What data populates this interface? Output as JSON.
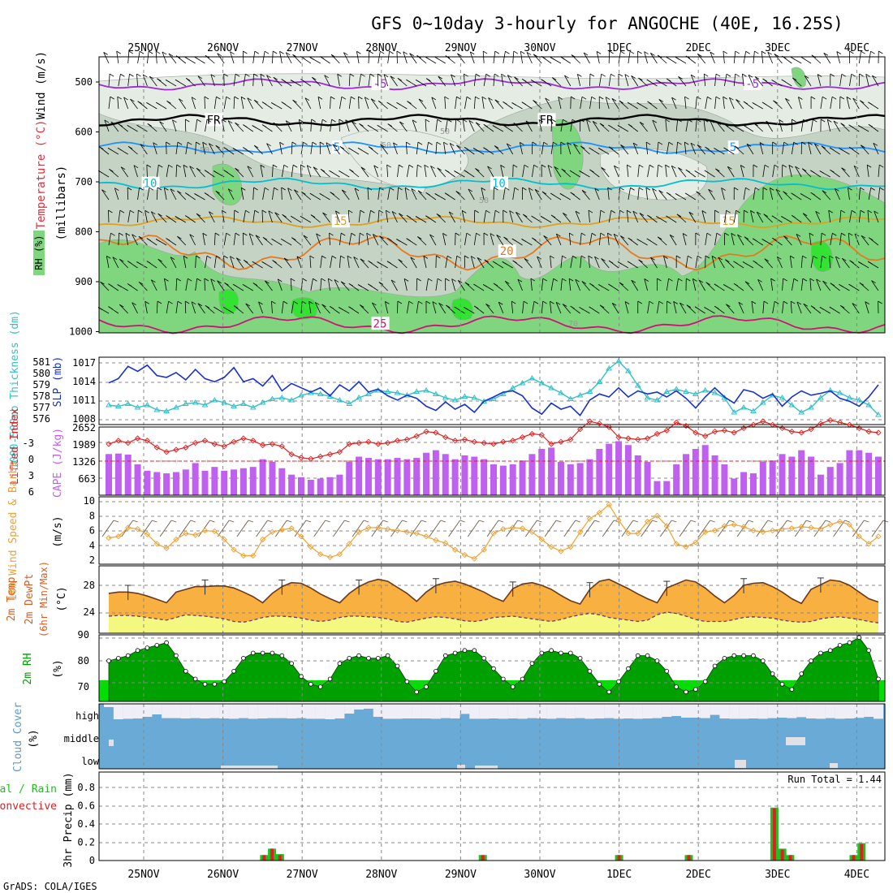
{
  "title": "GFS 0~10day 3-hourly for ANGOCHE (40E, 16.25S)",
  "credit": "GrADS: COLA/IGES",
  "colors": {
    "grid": "#888888",
    "rh_light": "#e4ece4",
    "rh_mid": "#c4d3c4",
    "rh_green": "#7fd67f",
    "rh_bright": "#33e233",
    "purple": "#9c2bd6",
    "blue": "#1e90ff",
    "cyan": "#00c0d0",
    "orange": "#e0a020",
    "dark_orange": "#e87820",
    "magenta": "#d0107a",
    "slp_line": "#1830d0",
    "thick_line": "#30c0c8",
    "cape_bar": "#c060f0",
    "li_line": "#e02020",
    "wind_line": "#f0a030",
    "temp_fill": "#f8b040",
    "temp_max_fill": "#f07018",
    "dew_fill": "#f4f880",
    "rh_area": "#00a000",
    "rh_base": "#00e000",
    "cloud": "#6aaad6",
    "cloud_clear": "#f0eef6",
    "precip_total": "#20c020",
    "precip_conv": "#e02020"
  },
  "chart_data": {
    "type": "meteogram",
    "dates": [
      "25NOV",
      "26NOV",
      "27NOV",
      "28NOV",
      "29NOV",
      "30NOV",
      "1DEC",
      "2DEC",
      "3DEC",
      "4DEC"
    ],
    "panels": [
      {
        "id": "upper_air",
        "type": "heatmap",
        "ylabel_parts": [
          "Wind (m/s)",
          "Temperature (°C)",
          "RH (%)"
        ],
        "yunits": "(millibars)",
        "yticks": [
          "500",
          "600",
          "700",
          "800",
          "900",
          "1000"
        ],
        "ylim": [
          450,
          1000
        ],
        "rh_contour_labels": [
          "50",
          "50",
          "50",
          "50",
          "70"
        ],
        "temp_contours": [
          {
            "label": "-5",
            "level": 505,
            "color": "purple",
            "labels_at": [
              3.1,
              7.8
            ]
          },
          {
            "label": "FR",
            "level": 577,
            "color": "black",
            "labels_at": [
              1.0,
              5.2
            ]
          },
          {
            "label": "5",
            "level": 632,
            "color": "blue",
            "labels_at": [
              2.6,
              7.6
            ]
          },
          {
            "label": "10",
            "level": 704,
            "color": "cyan",
            "labels_at": [
              0.2,
              4.6
            ]
          },
          {
            "label": "15",
            "level": 780,
            "color": "orange",
            "labels_at": [
              2.6,
              7.5
            ]
          },
          {
            "label": "20",
            "level": 840,
            "color": "dark_orange",
            "labels_at": [
              4.7
            ]
          },
          {
            "label": "25",
            "level": 985,
            "color": "magenta",
            "labels_at": [
              3.1
            ]
          }
        ]
      },
      {
        "id": "slp_thickness",
        "type": "line",
        "ylabel_left": "1000-500mb Thickness (dm)",
        "ylabel_right": "SLP (mb)",
        "yticks_left": [
          "581",
          "580",
          "579",
          "578",
          "577",
          "576"
        ],
        "yticks_right": [
          "1017",
          "1014",
          "1011",
          "1008"
        ],
        "slp_ylim": [
          1006.5,
          1017.5
        ],
        "slp": [
          1013.3,
          1014.0,
          1016.0,
          1015.2,
          1016.2,
          1014.5,
          1014.2,
          1015.0,
          1013.8,
          1015.5,
          1014.0,
          1013.5,
          1014.2,
          1015.8,
          1013.5,
          1014.0,
          1012.8,
          1014.5,
          1012.0,
          1013.2,
          1012.5,
          1011.8,
          1012.5,
          1011.2,
          1013.0,
          1012.0,
          1013.5,
          1011.8,
          1012.3,
          1011.2,
          1010.5,
          1011.3,
          1010.8,
          1009.5,
          1008.8,
          1010.2,
          1009.0,
          1009.8,
          1008.5,
          1010.3,
          1011.0,
          1011.8,
          1012.0,
          1011.2,
          1009.2,
          1008.2,
          1010.0,
          1009.0,
          1009.5,
          1008.0,
          1010.5,
          1011.5,
          1011.0,
          1012.5,
          1011.0,
          1012.0,
          1011.5,
          1011.8,
          1011.0,
          1012.0,
          1010.8,
          1009.2,
          1011.0,
          1012.5,
          1011.0,
          1010.0,
          1012.2,
          1011.8,
          1010.8,
          1011.5,
          1009.5,
          1011.0,
          1012.0,
          1011.3,
          1011.6,
          1012.0,
          1010.8,
          1010.3,
          1009.5,
          1011.0,
          1013.0
        ],
        "thickness": [
          577.4,
          577.3,
          577.5,
          577.2,
          577.4,
          577.0,
          576.9,
          577.2,
          577.5,
          577.6,
          577.4,
          577.8,
          577.6,
          577.3,
          577.5,
          577.2,
          577.6,
          577.9,
          578.0,
          577.8,
          578.2,
          578.4,
          578.3,
          578.1,
          577.8,
          577.5,
          578.0,
          578.3,
          578.6,
          578.5,
          578.4,
          578.2,
          578.5,
          578.6,
          578.3,
          578.0,
          577.8,
          578.1,
          578.0,
          577.7,
          577.9,
          578.3,
          578.8,
          579.2,
          579.6,
          579.2,
          578.8,
          578.4,
          577.9,
          578.2,
          578.5,
          579.3,
          580.4,
          581.0,
          580.2,
          579.0,
          578.0,
          577.8,
          578.5,
          578.7,
          578.5,
          578.3,
          578.6,
          578.4,
          578.0,
          576.8,
          577.2,
          576.9,
          577.6,
          578.2,
          578.0,
          577.4,
          576.8,
          577.2,
          578.0,
          578.6,
          578.4,
          578.0,
          577.8,
          577.4,
          576.6
        ]
      },
      {
        "id": "cape_li",
        "type": "bar",
        "ylabel_left": "Lifted Index",
        "ylabel_right": "CAPE (J/kg)",
        "yticks_left": [
          "-3",
          "0",
          "3",
          "6"
        ],
        "yticks_right": [
          "2652",
          "1989",
          "1326",
          "663"
        ],
        "cape_ylim": [
          0,
          2652
        ],
        "cape": [
          1600,
          1620,
          1580,
          1200,
          950,
          900,
          850,
          900,
          1000,
          1250,
          950,
          1100,
          950,
          1000,
          1050,
          1100,
          1400,
          1300,
          1050,
          800,
          700,
          600,
          650,
          700,
          800,
          1300,
          1500,
          1450,
          1400,
          1400,
          1450,
          1400,
          1450,
          1650,
          1750,
          1600,
          1400,
          1550,
          1500,
          1400,
          1200,
          1150,
          1200,
          1350,
          1600,
          1800,
          1850,
          1300,
          1200,
          1250,
          1400,
          1800,
          2000,
          2100,
          1950,
          1550,
          1300,
          550,
          550,
          1200,
          1600,
          1800,
          1950,
          1550,
          1200,
          650,
          900,
          850,
          1300,
          1350,
          1600,
          1500,
          1750,
          1500,
          800,
          1100,
          1250,
          1750,
          1750,
          1650,
          1500,
          1200,
          1100,
          950
        ],
        "li": [
          -1.5,
          -1.8,
          -1.6,
          -2.0,
          -1.8,
          -1.2,
          -0.8,
          -1.0,
          -1.2,
          -1.6,
          -1.8,
          -1.5,
          -1.3,
          -1.7,
          -2.0,
          -1.8,
          -1.4,
          -1.5,
          -1.3,
          -0.6,
          -0.3,
          -0.2,
          -0.4,
          -0.6,
          -0.8,
          -1.5,
          -1.6,
          -1.7,
          -1.5,
          -1.6,
          -1.8,
          -1.9,
          -2.2,
          -2.6,
          -2.5,
          -2.1,
          -1.8,
          -1.9,
          -1.7,
          -1.6,
          -1.5,
          -1.7,
          -1.8,
          -2.1,
          -2.4,
          -2.3,
          -1.5,
          -1.7,
          -1.9,
          -2.8,
          -3.5,
          -3.3,
          -3.0,
          -2.1,
          -2.0,
          -1.9,
          -2.0,
          -2.4,
          -2.7,
          -3.4,
          -3.1,
          -2.5,
          -2.2,
          -2.6,
          -2.7,
          -2.5,
          -2.9,
          -3.2,
          -3.5,
          -3.2,
          -2.9,
          -2.6,
          -2.5,
          -2.8,
          -3.3,
          -3.6,
          -3.4,
          -3.2,
          -2.9,
          -2.6,
          -2.5,
          -2.4,
          -2.3,
          -2.2
        ]
      },
      {
        "id": "wind10m",
        "type": "line",
        "ylabel": "10m Wind Speed & Barbs",
        "yunits": "(m/s)",
        "yticks": [
          "10",
          "8",
          "6",
          "4",
          "2"
        ],
        "ylim": [
          1.8,
          10.5
        ],
        "speed": [
          5.0,
          5.2,
          6.4,
          6.2,
          5.5,
          4.2,
          3.6,
          4.8,
          5.6,
          5.4,
          6.0,
          5.9,
          4.8,
          3.4,
          2.6,
          2.6,
          4.8,
          5.8,
          6.1,
          6.3,
          5.2,
          3.8,
          2.8,
          2.4,
          2.8,
          4.2,
          5.8,
          6.4,
          6.4,
          6.2,
          6.0,
          5.8,
          5.6,
          5.2,
          4.7,
          4.3,
          3.4,
          2.7,
          2.2,
          3.4,
          5.6,
          6.2,
          6.4,
          6.3,
          5.8,
          4.8,
          3.8,
          3.2,
          3.8,
          5.8,
          7.6,
          8.4,
          9.5,
          7.4,
          5.6,
          5.6,
          7.2,
          8.0,
          6.6,
          4.2,
          3.8,
          4.4,
          5.8,
          6.0,
          6.6,
          6.8,
          6.5,
          6.0,
          5.8,
          6.0,
          6.2,
          6.3,
          6.5,
          6.4,
          6.2,
          6.8,
          7.2,
          6.8,
          5.2,
          4.2,
          5.2
        ]
      },
      {
        "id": "temp2m",
        "type": "area",
        "ylabel": "2m Temp 2m DewPt (6hr Min/Max)",
        "yunits": "(°C)",
        "yticks": [
          "28",
          "24"
        ],
        "ylim": [
          21.8,
          30.2
        ],
        "temp": [
          26.8,
          27.0,
          27.0,
          26.8,
          26.4,
          25.9,
          25.4,
          27.0,
          27.4,
          27.8,
          27.8,
          27.9,
          27.9,
          27.6,
          27.0,
          26.3,
          25.4,
          26.8,
          27.8,
          28.4,
          28.3,
          27.6,
          26.7,
          26.0,
          25.4,
          26.8,
          27.8,
          28.5,
          28.9,
          28.6,
          27.7,
          26.8,
          25.6,
          27.0,
          28.0,
          28.4,
          28.6,
          28.2,
          27.6,
          27.0,
          26.2,
          25.6,
          27.5,
          28.2,
          28.4,
          28.0,
          27.4,
          26.5,
          25.7,
          25.2,
          27.4,
          28.6,
          28.9,
          28.2,
          27.5,
          26.7,
          26.0,
          25.4,
          27.6,
          28.2,
          28.8,
          28.5,
          27.6,
          26.4,
          25.4,
          26.5,
          28.0,
          28.3,
          28.4,
          27.8,
          27.0,
          26.0,
          25.3,
          27.4,
          28.1,
          28.8,
          28.6,
          28.0,
          27.0,
          26.0,
          25.5,
          27.6
        ],
        "dew": [
          23.4,
          23.5,
          23.5,
          23.4,
          23.2,
          23.0,
          22.8,
          23.2,
          23.6,
          23.5,
          23.4,
          23.2,
          23.0,
          22.6,
          22.5,
          22.8,
          23.2,
          23.4,
          23.4,
          23.3,
          23.1,
          22.8,
          22.6,
          22.8,
          23.2,
          23.4,
          23.4,
          23.3,
          23.2,
          23.0,
          22.6,
          22.5,
          22.8,
          23.1,
          23.3,
          23.2,
          23.0,
          22.7,
          22.6,
          22.8,
          23.2,
          23.3,
          23.4,
          23.2,
          23.0,
          22.8,
          22.6,
          22.9,
          23.3,
          23.6,
          23.8,
          23.6,
          23.2,
          23.0,
          22.8,
          22.6,
          22.8,
          23.6,
          24.0,
          23.8,
          23.4,
          22.9,
          22.6,
          22.6,
          22.6,
          22.9,
          23.2,
          23.3,
          23.2,
          23.1,
          22.8,
          22.6,
          22.5,
          22.6,
          23.0,
          23.2,
          23.3,
          23.1,
          22.9,
          22.6,
          22.4
        ],
        "max_overlay": [
          false,
          false,
          false,
          false,
          false,
          false,
          false,
          false,
          false,
          false,
          false,
          false,
          false,
          false,
          false,
          false,
          false,
          false,
          false,
          false,
          false,
          false,
          false,
          false,
          false,
          false,
          false,
          false,
          false,
          false,
          false,
          false,
          false,
          false,
          false,
          false,
          false,
          false,
          false,
          false,
          false,
          false,
          false,
          false,
          false,
          false,
          false,
          false,
          false,
          false,
          false,
          false,
          false,
          false,
          false,
          false,
          false,
          false,
          false,
          false,
          false,
          false,
          false,
          false,
          false,
          false,
          false,
          false,
          false,
          false,
          false,
          false,
          false,
          false,
          false,
          false,
          false,
          false,
          false,
          false,
          false,
          false
        ]
      },
      {
        "id": "rh2m",
        "type": "area",
        "ylabel": "2m RH",
        "yunits": "(%)",
        "yticks": [
          "90",
          "80",
          "70"
        ],
        "ylim": [
          61,
          93
        ],
        "rh": [
          80,
          81,
          82,
          84,
          85,
          86,
          87,
          82,
          76,
          73,
          71,
          71,
          72,
          76,
          81,
          83,
          83,
          83,
          82,
          79,
          74,
          71,
          70,
          73,
          79,
          81,
          82,
          81,
          81,
          82,
          78,
          72,
          68,
          70,
          76,
          82,
          83,
          84,
          84,
          81,
          77,
          73,
          70,
          73,
          79,
          83,
          84,
          83,
          83,
          81,
          76,
          71,
          68,
          72,
          77,
          82,
          82,
          80,
          76,
          70,
          68,
          69,
          72,
          78,
          81,
          82,
          82,
          82,
          80,
          75,
          71,
          69,
          75,
          80,
          83,
          84,
          86,
          87,
          89,
          84,
          73
        ]
      },
      {
        "id": "cloud",
        "type": "bar",
        "ylabel": "Cloud Cover",
        "yunits": "(%)",
        "level_labels": [
          "high",
          "middle",
          "low"
        ],
        "high_clear": [
          20,
          95,
          92,
          90,
          80,
          65,
          88,
          88,
          90,
          88,
          90,
          88,
          90,
          92,
          88,
          92,
          90,
          88,
          88,
          90,
          88,
          92,
          92,
          95,
          90,
          60,
          35,
          30,
          80,
          92,
          92,
          90,
          90,
          90,
          92,
          88,
          90,
          62,
          92,
          92,
          90,
          92,
          90,
          92,
          88,
          90,
          92,
          88,
          90,
          88,
          92,
          90,
          88,
          92,
          90,
          92,
          90,
          88,
          80,
          75,
          85,
          85,
          88,
          68,
          90,
          92,
          92,
          90,
          92,
          88,
          85,
          88,
          82,
          90,
          92,
          88,
          92,
          90,
          86,
          80,
          92,
          88,
          90,
          92,
          88,
          86,
          80,
          70
        ]
      },
      {
        "id": "precip",
        "type": "bar",
        "ylabel_left_parts": [
          "Total / Rain",
          "Convective"
        ],
        "ylabel": "3hr Precip (mm)",
        "yticks": [
          "0.8",
          "0.6",
          "0.4",
          "0.2",
          "0"
        ],
        "ylim": [
          0,
          0.94
        ],
        "run_total_label": "Run Total = 1.44",
        "bars": [
          {
            "x": 1.52,
            "total": 0.06,
            "conv": 0.06
          },
          {
            "x": 1.62,
            "total": 0.13,
            "conv": 0.13
          },
          {
            "x": 1.72,
            "total": 0.07,
            "conv": 0.06
          },
          {
            "x": 4.28,
            "total": 0.06,
            "conv": 0.06
          },
          {
            "x": 6.0,
            "total": 0.06,
            "conv": 0.06
          },
          {
            "x": 6.88,
            "total": 0.06,
            "conv": 0.06
          },
          {
            "x": 7.96,
            "total": 0.58,
            "conv": 0.57
          },
          {
            "x": 8.06,
            "total": 0.13,
            "conv": 0.12
          },
          {
            "x": 8.16,
            "total": 0.06,
            "conv": 0.06
          },
          {
            "x": 8.96,
            "total": 0.06,
            "conv": 0.06
          },
          {
            "x": 9.06,
            "total": 0.19,
            "conv": 0.18
          }
        ]
      }
    ]
  }
}
